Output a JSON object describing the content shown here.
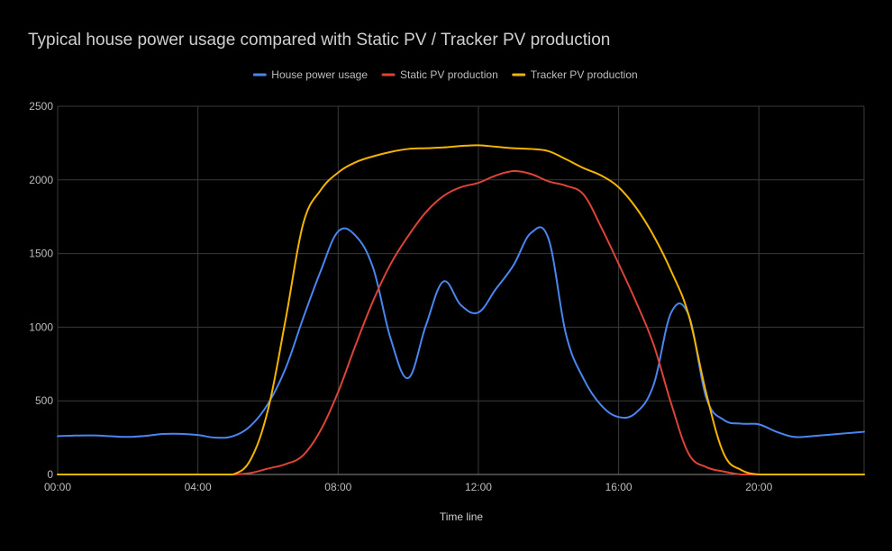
{
  "chart_data": {
    "type": "line",
    "title": "Typical house power usage compared with Static PV / Tracker PV production",
    "xlabel": "Time line",
    "ylabel": "",
    "ylim": [
      0,
      2500
    ],
    "yticks": [
      "0",
      "500",
      "1000",
      "1500",
      "2000",
      "2500"
    ],
    "xlim": [
      0,
      23
    ],
    "xticks": [
      {
        "hour": 0,
        "label": "00:00"
      },
      {
        "hour": 4,
        "label": "04:00"
      },
      {
        "hour": 8,
        "label": "08:00"
      },
      {
        "hour": 12,
        "label": "12:00"
      },
      {
        "hour": 16,
        "label": "16:00"
      },
      {
        "hour": 20,
        "label": "20:00"
      }
    ],
    "grid": true,
    "legend_position": "top",
    "x_hours": [
      0,
      0.5,
      1,
      1.5,
      2,
      2.5,
      3,
      3.5,
      4,
      4.5,
      5,
      5.5,
      6,
      6.5,
      7,
      7.5,
      8,
      8.5,
      9,
      9.5,
      10,
      10.5,
      11,
      11.5,
      12,
      12.5,
      13,
      13.5,
      14,
      14.5,
      15,
      15.5,
      16,
      16.5,
      17,
      17.5,
      18,
      18.5,
      19,
      19.5,
      20,
      20.5,
      21,
      21.5,
      22,
      22.5,
      23
    ],
    "series": [
      {
        "name": "House power usage",
        "color": "#4a86f0",
        "values": [
          260,
          264,
          265,
          260,
          255,
          262,
          275,
          276,
          268,
          250,
          260,
          330,
          480,
          720,
          1060,
          1380,
          1650,
          1620,
          1400,
          920,
          655,
          1010,
          1310,
          1150,
          1100,
          1260,
          1420,
          1640,
          1600,
          950,
          650,
          470,
          390,
          420,
          610,
          1100,
          1080,
          520,
          370,
          345,
          340,
          290,
          255,
          260,
          270,
          280,
          290
        ]
      },
      {
        "name": "Static PV production",
        "color": "#db4437",
        "values": [
          0,
          0,
          0,
          0,
          0,
          0,
          0,
          0,
          0,
          0,
          0,
          10,
          40,
          70,
          130,
          300,
          560,
          880,
          1180,
          1430,
          1620,
          1780,
          1890,
          1950,
          1980,
          2030,
          2060,
          2040,
          1990,
          1960,
          1900,
          1680,
          1430,
          1170,
          880,
          480,
          140,
          50,
          20,
          0,
          0,
          0,
          0,
          0,
          0,
          0,
          0
        ]
      },
      {
        "name": "Tracker PV production",
        "color": "#f4b400",
        "values": [
          0,
          0,
          0,
          0,
          0,
          0,
          0,
          0,
          0,
          0,
          0,
          100,
          440,
          1050,
          1700,
          1930,
          2050,
          2120,
          2160,
          2190,
          2210,
          2215,
          2220,
          2230,
          2235,
          2225,
          2215,
          2210,
          2195,
          2140,
          2080,
          2030,
          1950,
          1810,
          1620,
          1380,
          1080,
          550,
          140,
          30,
          0,
          0,
          0,
          0,
          0,
          0,
          0
        ]
      }
    ]
  }
}
